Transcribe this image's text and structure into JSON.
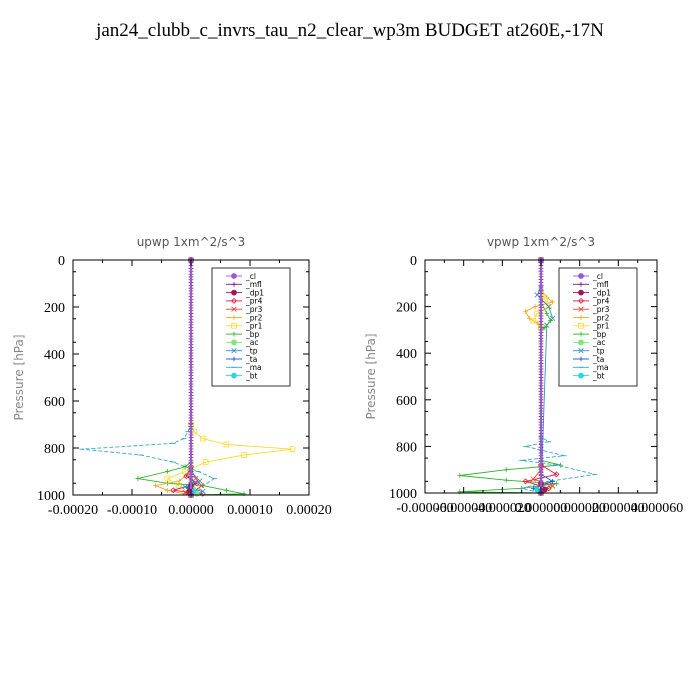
{
  "figure": {
    "title": "jan24_clubb_c_invrs_tau_n2_clear_wp3m  BUDGET at260E,-17N"
  },
  "colors": {
    "_cl": "#9b59d0",
    "_mfl": "#7a1f6e",
    "_dp1": "#a0185a",
    "_pr4": "#e8173a",
    "_pr3": "#e8452a",
    "_pr2": "#f5a623",
    "_pr1": "#ffd92f",
    "_bp": "#2bb52b",
    "_ac": "#7de87d",
    "_tp": "#2f8fd6",
    "_ta": "#1f4fd0",
    "_ma": "#39a9c9",
    "_bt": "#28d7e0"
  },
  "chart_data": [
    {
      "type": "line",
      "title": "upwp   1xm^2/s^3",
      "ylabel": "Pressure [hPa]",
      "xlim": [
        -0.0002,
        0.0002
      ],
      "ylim": [
        1000,
        0
      ],
      "xticks": [
        "-0.00020",
        "-0.00010",
        "0.00000",
        "0.00010",
        "0.00020"
      ],
      "yticks": [
        "0",
        "200",
        "400",
        "600",
        "800",
        "1000"
      ],
      "legend": [
        "_cl",
        "_mfl",
        "_dp1",
        "_pr4",
        "_pr3",
        "_pr2",
        "_pr1",
        "_bp",
        "_ac",
        "_tp",
        "_ta",
        "_ma",
        "_bt"
      ],
      "legend_position": "top-right",
      "series": [
        {
          "name": "_ma",
          "x": [
            0,
            0,
            -5e-06,
            -1.2e-05,
            -3e-05,
            -0.000185,
            -8.5e-05,
            -3e-05,
            1.2e-05,
            4e-05,
            2e-05,
            5e-06
          ],
          "y": [
            0,
            700,
            730,
            760,
            780,
            805,
            830,
            860,
            900,
            930,
            960,
            1000
          ]
        },
        {
          "name": "_pr1",
          "x": [
            0,
            0,
            5e-06,
            2e-05,
            6e-05,
            0.000172,
            9e-05,
            2.5e-05,
            -1e-05,
            -4e-05,
            -2e-05,
            0
          ],
          "y": [
            0,
            700,
            730,
            760,
            785,
            805,
            830,
            860,
            900,
            930,
            960,
            1000
          ]
        },
        {
          "name": "_bp",
          "x": [
            0,
            0,
            -1e-05,
            -4e-05,
            -9e-05,
            -4e-05,
            2e-05,
            6e-05,
            9e-05,
            0
          ],
          "y": [
            0,
            860,
            880,
            900,
            930,
            950,
            960,
            980,
            995,
            1000
          ]
        },
        {
          "name": "_pr2",
          "x": [
            0,
            0,
            -2e-05,
            -6e-05,
            -4e-05,
            0
          ],
          "y": [
            0,
            900,
            940,
            960,
            980,
            1000
          ]
        },
        {
          "name": "_pr4",
          "x": [
            0,
            0,
            -8e-06,
            1e-05,
            -3e-05,
            2e-05,
            0
          ],
          "y": [
            0,
            880,
            920,
            950,
            980,
            995,
            1000
          ]
        },
        {
          "name": "_pr3",
          "x": [
            0,
            0,
            8e-06,
            1.8e-05,
            8e-06,
            -1e-05,
            0
          ],
          "y": [
            0,
            890,
            930,
            960,
            980,
            990,
            1000
          ]
        },
        {
          "name": "_tp",
          "x": [
            0,
            0,
            1.5e-05,
            -1e-05,
            2e-05,
            0
          ],
          "y": [
            0,
            900,
            940,
            965,
            985,
            1000
          ]
        },
        {
          "name": "_ta",
          "x": [
            0,
            0,
            5e-06,
            -5e-06,
            8e-06,
            0
          ],
          "y": [
            0,
            920,
            950,
            970,
            990,
            1000
          ]
        },
        {
          "name": "_ac",
          "x": [
            0,
            0,
            4e-06,
            1e-05,
            0
          ],
          "y": [
            0,
            950,
            975,
            995,
            1000
          ]
        },
        {
          "name": "_bt",
          "x": [
            0,
            0,
            3e-06,
            0
          ],
          "y": [
            0,
            960,
            985,
            1000
          ]
        },
        {
          "name": "_dp1",
          "x": [
            0,
            0,
            -3e-06,
            0
          ],
          "y": [
            0,
            960,
            985,
            1000
          ]
        },
        {
          "name": "_cl",
          "x": [
            0,
            0
          ],
          "y": [
            0,
            1000
          ]
        },
        {
          "name": "_mfl",
          "x": [
            0,
            0
          ],
          "y": [
            0,
            1000
          ]
        }
      ]
    },
    {
      "type": "line",
      "title": "vpwp   1xm^2/s^3",
      "ylabel": "Pressure [hPa]",
      "xlim": [
        -6e-05,
        6e-05
      ],
      "ylim": [
        1000,
        0
      ],
      "xticks": [
        "-0.000060",
        "-0.000040",
        "-0.000020",
        "0.000000",
        "0.000020",
        "0.000040",
        "0.000060"
      ],
      "yticks": [
        "0",
        "200",
        "400",
        "600",
        "800",
        "1000"
      ],
      "legend": [
        "_cl",
        "_mfl",
        "_dp1",
        "_pr4",
        "_pr3",
        "_pr2",
        "_pr1",
        "_bp",
        "_ac",
        "_tp",
        "_ta",
        "_ma",
        "_bt"
      ],
      "legend_position": "top-right",
      "series": [
        {
          "name": "_pr2",
          "x": [
            0,
            0,
            3e-06,
            6e-06,
            -3e-06,
            -8e-06,
            -6e-06,
            -2e-06,
            0,
            0
          ],
          "y": [
            0,
            130,
            160,
            180,
            200,
            220,
            250,
            270,
            290,
            1000
          ]
        },
        {
          "name": "_pr1",
          "x": [
            0,
            0,
            2e-06,
            4e-06,
            -2e-06,
            -4e-06,
            0,
            0
          ],
          "y": [
            0,
            140,
            170,
            200,
            230,
            260,
            290,
            1000
          ]
        },
        {
          "name": "_tp",
          "x": [
            0,
            0,
            -2e-06,
            4e-06,
            6e-06,
            3e-06,
            0
          ],
          "y": [
            0,
            120,
            150,
            200,
            250,
            280,
            1000
          ]
        },
        {
          "name": "_bp",
          "x": [
            0,
            0,
            3e-06,
            5e-06,
            2e-06,
            0,
            0,
            1e-05,
            -1.8e-05,
            -4.2e-05,
            -1.8e-05,
            8e-06,
            -1e-05,
            -4.2e-05,
            0
          ],
          "y": [
            0,
            180,
            230,
            260,
            290,
            300,
            860,
            880,
            900,
            925,
            945,
            960,
            980,
            995,
            1000
          ]
        },
        {
          "name": "_ma",
          "x": [
            0,
            0,
            4e-06,
            -8e-06,
            1.2e-05,
            -1e-05,
            8e-06,
            2.8e-05,
            4e-06,
            -1e-05,
            0
          ],
          "y": [
            0,
            760,
            780,
            800,
            840,
            860,
            880,
            920,
            950,
            980,
            1000
          ]
        },
        {
          "name": "_pr4",
          "x": [
            0,
            0,
            8e-06,
            -8e-06,
            4e-06,
            0
          ],
          "y": [
            0,
            880,
            920,
            950,
            980,
            1000
          ]
        },
        {
          "name": "_pr3",
          "x": [
            0,
            0,
            -4e-06,
            6e-06,
            0
          ],
          "y": [
            0,
            900,
            940,
            970,
            1000
          ]
        },
        {
          "name": "_ta",
          "x": [
            0,
            0,
            6e-06,
            -4e-06,
            0
          ],
          "y": [
            0,
            920,
            950,
            980,
            1000
          ]
        },
        {
          "name": "_ac",
          "x": [
            0,
            0,
            2e-06,
            0
          ],
          "y": [
            0,
            960,
            985,
            1000
          ]
        },
        {
          "name": "_bt",
          "x": [
            0,
            0,
            -2e-06,
            0
          ],
          "y": [
            0,
            960,
            985,
            1000
          ]
        },
        {
          "name": "_dp1",
          "x": [
            0,
            0,
            2e-06,
            0
          ],
          "y": [
            0,
            960,
            985,
            1000
          ]
        },
        {
          "name": "_cl",
          "x": [
            0,
            0
          ],
          "y": [
            0,
            1000
          ]
        },
        {
          "name": "_mfl",
          "x": [
            0,
            0
          ],
          "y": [
            0,
            1000
          ]
        }
      ]
    }
  ]
}
